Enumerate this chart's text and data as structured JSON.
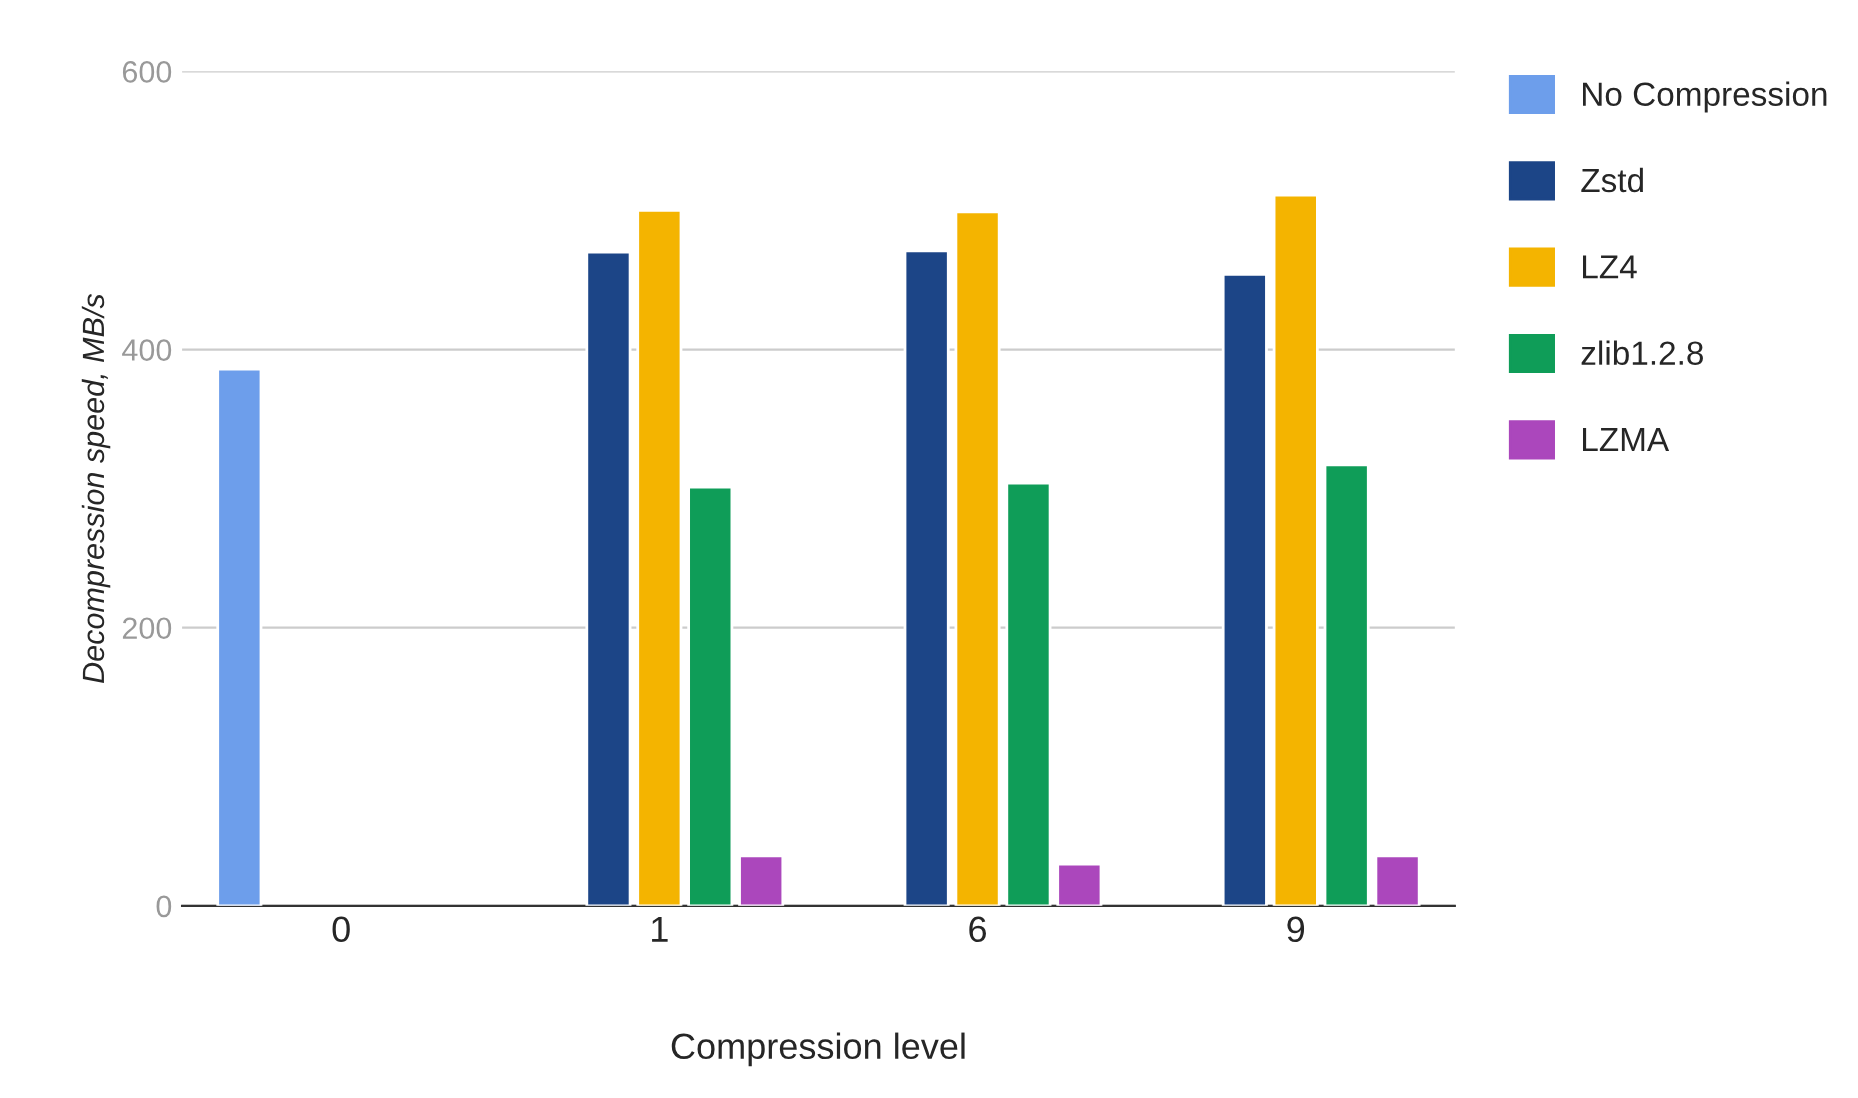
{
  "chart_data": {
    "type": "bar",
    "xlabel": "Compression level",
    "ylabel": "Decompression speed, MB/s",
    "categories": [
      "0",
      "1",
      "6",
      "9"
    ],
    "series": [
      {
        "name": "No Compression",
        "color": "#6d9eeb",
        "values": [
          386,
          null,
          null,
          null
        ]
      },
      {
        "name": "Zstd",
        "color": "#1c4587",
        "values": [
          null,
          470,
          471,
          454
        ]
      },
      {
        "name": "LZ4",
        "color": "#f4b400",
        "values": [
          null,
          500,
          499,
          511
        ]
      },
      {
        "name": "zlib1.2.8",
        "color": "#0f9d58",
        "values": [
          null,
          301,
          304,
          317
        ]
      },
      {
        "name": "LZMA",
        "color": "#ab47bc",
        "values": [
          null,
          36,
          30,
          36
        ]
      }
    ],
    "ylim": [
      0,
      600
    ],
    "yticks": [
      0,
      200,
      400,
      600
    ],
    "grid": "y",
    "legend": "top right"
  }
}
